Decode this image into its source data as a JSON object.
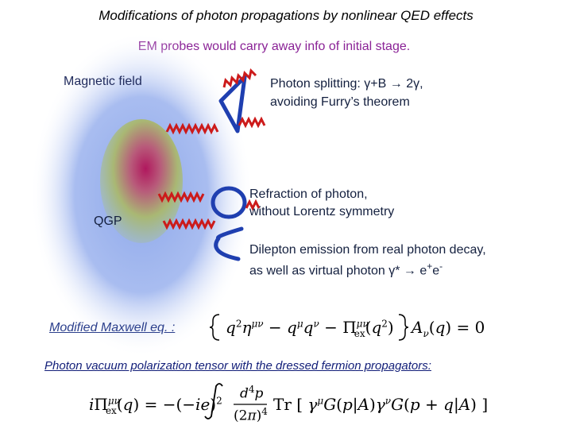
{
  "title": "Modifications of  photon propagations by nonlinear QED effects",
  "subtitle": "EM probes would carry away info of initial stage.",
  "labels": {
    "magnetic_field": "Magnetic field",
    "qgp": "QGP"
  },
  "processes": {
    "splitting_line1": "Photon splitting: γ+B → 2γ,",
    "splitting_line2": "avoiding Furry’s theorem",
    "refraction_line1": "Refraction of photon,",
    "refraction_line2": "without Lorentz symmetry",
    "dilepton_line1": "Dilepton emission from real photon decay,",
    "dilepton_line2_prefix": "as well as virtual photon γ* → e",
    "dilepton_line2_plus": "+",
    "dilepton_line2_e": "e",
    "dilepton_line2_minus": "-"
  },
  "equations": {
    "maxwell_label": "Modified Maxwell eq. :",
    "maxwell_eq": "{ q²η^μν − q^μ q^ν − Π_ex^μν(q²) } A_ν(q) = 0",
    "polarization_label": "Photon vacuum polarization tensor with the dressed fermion propagators:",
    "polarization_eq": "iΠ_ex^μν(q) = −(−ie)² ∫ d⁴p/(2π)⁴ Tr[ γ^μ G(p|A) γ^ν G(p+q|A) ]"
  },
  "colors": {
    "subtitle": "#8a2296",
    "photon_wave": "#cc1a1a",
    "loop": "#1f3fb0",
    "field_glow": "#7e9fe6",
    "qgp_core": "#b0185e",
    "qgp_outer": "#a8c27a"
  }
}
